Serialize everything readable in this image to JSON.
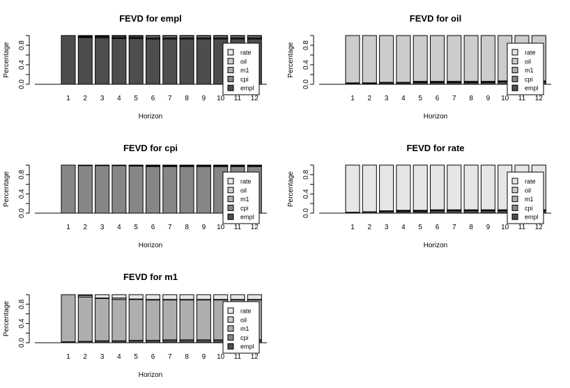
{
  "chart_data": [
    {
      "type": "bar",
      "stacked": true,
      "title": "FEVD for empl",
      "xlabel": "Horizon",
      "ylabel": "Percentage",
      "ylim": [
        0,
        1
      ],
      "yticks": [
        "0.0",
        "0.4",
        "0.8"
      ],
      "categories": [
        "1",
        "2",
        "3",
        "4",
        "5",
        "6",
        "7",
        "8",
        "9",
        "10",
        "11",
        "12"
      ],
      "series": [
        {
          "name": "empl",
          "values": [
            1.0,
            0.96,
            0.95,
            0.94,
            0.94,
            0.93,
            0.93,
            0.93,
            0.93,
            0.93,
            0.93,
            0.93
          ]
        },
        {
          "name": "cpi",
          "values": [
            0.0,
            0.01,
            0.01,
            0.01,
            0.01,
            0.01,
            0.01,
            0.01,
            0.01,
            0.01,
            0.01,
            0.01
          ]
        },
        {
          "name": "m1",
          "values": [
            0.0,
            0.01,
            0.02,
            0.02,
            0.02,
            0.02,
            0.02,
            0.02,
            0.02,
            0.02,
            0.02,
            0.02
          ]
        },
        {
          "name": "oil",
          "values": [
            0.0,
            0.01,
            0.01,
            0.02,
            0.02,
            0.03,
            0.03,
            0.03,
            0.03,
            0.03,
            0.03,
            0.03
          ]
        },
        {
          "name": "rate",
          "values": [
            0.0,
            0.01,
            0.01,
            0.01,
            0.01,
            0.01,
            0.01,
            0.01,
            0.01,
            0.01,
            0.01,
            0.01
          ]
        }
      ]
    },
    {
      "type": "bar",
      "stacked": true,
      "title": "FEVD for oil",
      "xlabel": "Horizon",
      "ylabel": "Percentage",
      "ylim": [
        0,
        1
      ],
      "yticks": [
        "0.0",
        "0.4",
        "0.8"
      ],
      "categories": [
        "1",
        "2",
        "3",
        "4",
        "5",
        "6",
        "7",
        "8",
        "9",
        "10",
        "11",
        "12"
      ],
      "series": [
        {
          "name": "empl",
          "values": [
            0.02,
            0.02,
            0.03,
            0.03,
            0.04,
            0.04,
            0.04,
            0.04,
            0.04,
            0.05,
            0.05,
            0.05
          ]
        },
        {
          "name": "cpi",
          "values": [
            0.01,
            0.01,
            0.01,
            0.01,
            0.01,
            0.01,
            0.01,
            0.01,
            0.01,
            0.01,
            0.01,
            0.01
          ]
        },
        {
          "name": "m1",
          "values": [
            0.0,
            0.0,
            0.0,
            0.0,
            0.01,
            0.01,
            0.01,
            0.01,
            0.01,
            0.01,
            0.01,
            0.01
          ]
        },
        {
          "name": "oil",
          "values": [
            0.97,
            0.97,
            0.96,
            0.96,
            0.94,
            0.94,
            0.94,
            0.94,
            0.94,
            0.93,
            0.93,
            0.93
          ]
        },
        {
          "name": "rate",
          "values": [
            0.0,
            0.0,
            0.0,
            0.0,
            0.0,
            0.0,
            0.0,
            0.0,
            0.0,
            0.0,
            0.0,
            0.0
          ]
        }
      ]
    },
    {
      "type": "bar",
      "stacked": true,
      "title": "FEVD for cpi",
      "xlabel": "Horizon",
      "ylabel": "Percentage",
      "ylim": [
        0,
        1
      ],
      "yticks": [
        "0.0",
        "0.4",
        "0.8"
      ],
      "categories": [
        "1",
        "2",
        "3",
        "4",
        "5",
        "6",
        "7",
        "8",
        "9",
        "10",
        "11",
        "12"
      ],
      "series": [
        {
          "name": "empl",
          "values": [
            0.0,
            0.0,
            0.0,
            0.0,
            0.0,
            0.0,
            0.0,
            0.0,
            0.0,
            0.0,
            0.0,
            0.0
          ]
        },
        {
          "name": "cpi",
          "values": [
            1.0,
            0.99,
            0.99,
            0.99,
            0.98,
            0.97,
            0.97,
            0.97,
            0.97,
            0.97,
            0.97,
            0.97
          ]
        },
        {
          "name": "m1",
          "values": [
            0.0,
            0.0,
            0.0,
            0.0,
            0.0,
            0.01,
            0.01,
            0.01,
            0.01,
            0.01,
            0.01,
            0.01
          ]
        },
        {
          "name": "oil",
          "values": [
            0.0,
            0.0,
            0.0,
            0.0,
            0.01,
            0.01,
            0.01,
            0.01,
            0.01,
            0.01,
            0.01,
            0.01
          ]
        },
        {
          "name": "rate",
          "values": [
            0.0,
            0.01,
            0.01,
            0.01,
            0.01,
            0.01,
            0.01,
            0.01,
            0.01,
            0.01,
            0.01,
            0.01
          ]
        }
      ]
    },
    {
      "type": "bar",
      "stacked": true,
      "title": "FEVD for rate",
      "xlabel": "Horizon",
      "ylabel": "Percentage",
      "ylim": [
        0,
        1
      ],
      "yticks": [
        "0.0",
        "0.4",
        "0.8"
      ],
      "categories": [
        "1",
        "2",
        "3",
        "4",
        "5",
        "6",
        "7",
        "8",
        "9",
        "10",
        "11",
        "12"
      ],
      "series": [
        {
          "name": "empl",
          "values": [
            0.02,
            0.03,
            0.04,
            0.04,
            0.04,
            0.05,
            0.05,
            0.05,
            0.05,
            0.05,
            0.05,
            0.05
          ]
        },
        {
          "name": "cpi",
          "values": [
            0.0,
            0.0,
            0.0,
            0.0,
            0.0,
            0.0,
            0.0,
            0.0,
            0.0,
            0.0,
            0.0,
            0.0
          ]
        },
        {
          "name": "m1",
          "values": [
            0.0,
            0.0,
            0.0,
            0.01,
            0.01,
            0.01,
            0.01,
            0.01,
            0.01,
            0.01,
            0.01,
            0.01
          ]
        },
        {
          "name": "oil",
          "values": [
            0.0,
            0.0,
            0.01,
            0.01,
            0.01,
            0.01,
            0.01,
            0.01,
            0.01,
            0.01,
            0.01,
            0.01
          ]
        },
        {
          "name": "rate",
          "values": [
            0.98,
            0.97,
            0.95,
            0.94,
            0.94,
            0.93,
            0.93,
            0.93,
            0.93,
            0.93,
            0.93,
            0.93
          ]
        }
      ]
    },
    {
      "type": "bar",
      "stacked": true,
      "title": "FEVD for m1",
      "xlabel": "Horizon",
      "ylabel": "Percentage",
      "ylim": [
        0,
        1
      ],
      "yticks": [
        "0.0",
        "0.4",
        "0.8"
      ],
      "categories": [
        "1",
        "2",
        "3",
        "4",
        "5",
        "6",
        "7",
        "8",
        "9",
        "10",
        "11",
        "12"
      ],
      "series": [
        {
          "name": "empl",
          "values": [
            0.02,
            0.03,
            0.04,
            0.04,
            0.05,
            0.05,
            0.06,
            0.06,
            0.06,
            0.06,
            0.06,
            0.06
          ]
        },
        {
          "name": "cpi",
          "values": [
            0.0,
            0.0,
            0.0,
            0.0,
            0.0,
            0.0,
            0.0,
            0.0,
            0.0,
            0.0,
            0.0,
            0.0
          ]
        },
        {
          "name": "m1",
          "values": [
            0.98,
            0.92,
            0.88,
            0.86,
            0.85,
            0.84,
            0.83,
            0.83,
            0.83,
            0.83,
            0.83,
            0.83
          ]
        },
        {
          "name": "oil",
          "values": [
            0.0,
            0.03,
            0.01,
            0.03,
            0.01,
            0.01,
            0.01,
            0.01,
            0.01,
            0.01,
            0.01,
            0.01
          ]
        },
        {
          "name": "rate",
          "values": [
            0.0,
            0.02,
            0.07,
            0.07,
            0.09,
            0.1,
            0.1,
            0.1,
            0.1,
            0.1,
            0.1,
            0.1
          ]
        }
      ]
    }
  ],
  "colors": {
    "empl": "#4d4d4d",
    "cpi": "#868686",
    "m1": "#aeaeae",
    "oil": "#cccccc",
    "rate": "#e6e6e6",
    "edge": "#000000"
  }
}
